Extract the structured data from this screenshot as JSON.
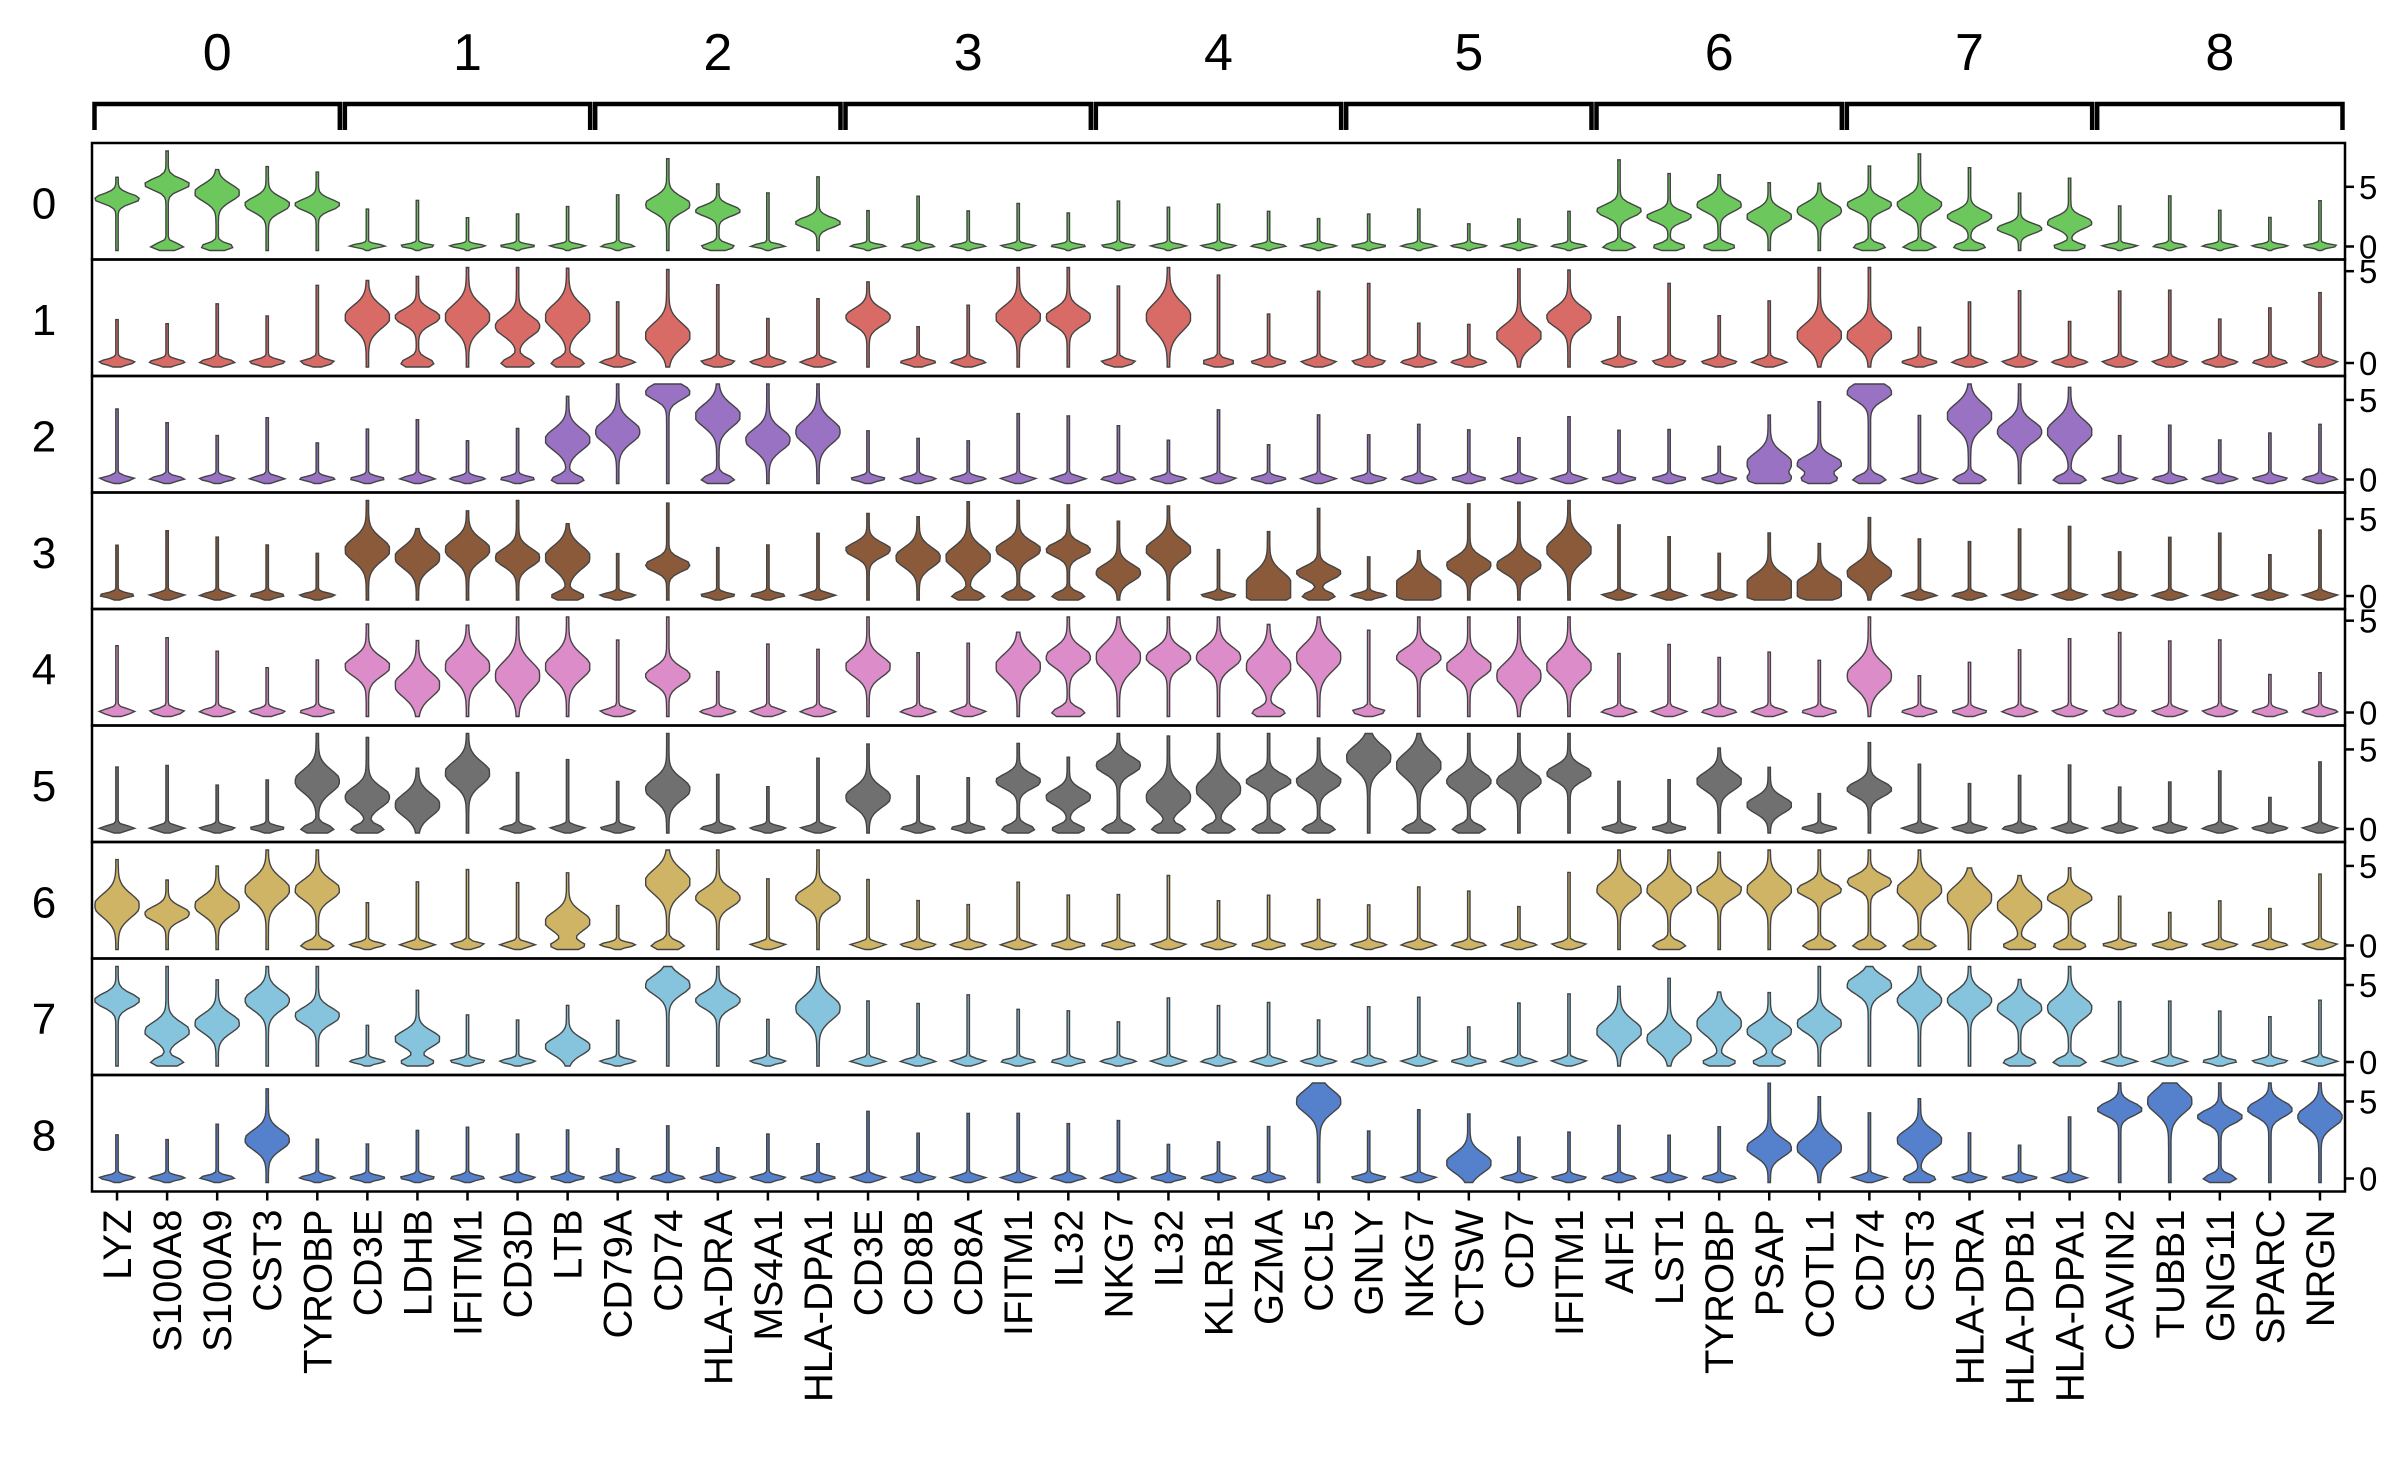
{
  "chart_data": {
    "type": "stacked_violin",
    "group_labels": [
      "0",
      "1",
      "2",
      "3",
      "4",
      "5",
      "6",
      "7",
      "8"
    ],
    "gene_groups": [
      {
        "label": "0",
        "genes": [
          "LYZ",
          "S100A8",
          "S100A9",
          "CST3",
          "TYROBP"
        ]
      },
      {
        "label": "1",
        "genes": [
          "CD3E",
          "LDHB",
          "IFITM1",
          "CD3D",
          "LTB"
        ]
      },
      {
        "label": "2",
        "genes": [
          "CD79A",
          "CD74",
          "HLA-DRA",
          "MS4A1",
          "HLA-DPA1"
        ]
      },
      {
        "label": "3",
        "genes": [
          "CD3E",
          "CD8B",
          "CD8A",
          "IFITM1",
          "IL32"
        ]
      },
      {
        "label": "4",
        "genes": [
          "NKG7",
          "IL32",
          "KLRB1",
          "GZMA",
          "CCL5"
        ]
      },
      {
        "label": "5",
        "genes": [
          "GNLY",
          "NKG7",
          "CTSW",
          "CD7",
          "IFITM1"
        ]
      },
      {
        "label": "6",
        "genes": [
          "AIF1",
          "LST1",
          "TYROBP",
          "PSAP",
          "COTL1"
        ]
      },
      {
        "label": "7",
        "genes": [
          "CD74",
          "CST3",
          "HLA-DRA",
          "HLA-DPB1",
          "HLA-DPA1"
        ]
      },
      {
        "label": "8",
        "genes": [
          "CAVIN2",
          "TUBB1",
          "GNG11",
          "SPARC",
          "NRGN"
        ]
      }
    ],
    "rows": [
      {
        "label": "0",
        "color": "#6cc85c",
        "ticks": [
          "5",
          "0"
        ],
        "y_max": 8
      },
      {
        "label": "1",
        "color": "#d96b66",
        "ticks": [
          "5",
          "0"
        ],
        "y_max": 5.2
      },
      {
        "label": "2",
        "color": "#9a72c4",
        "ticks": [
          "5",
          "0"
        ],
        "y_max": 6
      },
      {
        "label": "3",
        "color": "#8a5a3a",
        "ticks": [
          "5",
          "0"
        ],
        "y_max": 6.2
      },
      {
        "label": "4",
        "color": "#dc8cc8",
        "ticks": [
          "5",
          "0"
        ],
        "y_max": 5.2
      },
      {
        "label": "5",
        "color": "#707070",
        "ticks": [
          "5",
          "0"
        ],
        "y_max": 6
      },
      {
        "label": "6",
        "color": "#cfb465",
        "ticks": [
          "5",
          "0"
        ],
        "y_max": 6
      },
      {
        "label": "7",
        "color": "#86c3dc",
        "ticks": [
          "5",
          "0"
        ],
        "y_max": 6.2
      },
      {
        "label": "8",
        "color": "#5580cc",
        "ticks": [
          "5",
          "0"
        ],
        "y_max": 6.2
      }
    ],
    "median_expression": [
      [
        4.0,
        5.2,
        4.5,
        3.5,
        3.5,
        0.2,
        0.5,
        0.2,
        0.1,
        0.2,
        0.1,
        3.5,
        3.0,
        0.2,
        2.0,
        0.1,
        0.1,
        0.1,
        0.2,
        0.2,
        0.1,
        0.1,
        0.1,
        0.1,
        0.2,
        0.1,
        0.1,
        0.1,
        0.1,
        0.1,
        3.0,
        2.5,
        3.5,
        2.5,
        3.0,
        3.5,
        3.5,
        2.5,
        1.5,
        2.0,
        0.1,
        0.1,
        0.1,
        0.1,
        0.3
      ],
      [
        0.2,
        0.2,
        0.2,
        0.1,
        0.1,
        2.5,
        2.5,
        2.5,
        2.0,
        2.5,
        0.1,
        1.5,
        0.1,
        0.1,
        0.1,
        2.5,
        0.1,
        0.1,
        2.5,
        2.5,
        0.1,
        2.5,
        0.5,
        0.2,
        0.2,
        0.1,
        0.1,
        0.3,
        1.5,
        2.5,
        0.2,
        0.2,
        0.1,
        0.5,
        1.5,
        1.5,
        0.1,
        0.1,
        0.1,
        0.1,
        0.1,
        0.1,
        0.1,
        0.1,
        0.1
      ],
      [
        0.2,
        0.2,
        0.2,
        0.1,
        0.1,
        0.2,
        0.5,
        0.2,
        0.1,
        2.5,
        3.0,
        5.5,
        4.0,
        2.5,
        3.0,
        0.2,
        0.1,
        0.1,
        0.3,
        0.2,
        0.1,
        0.1,
        0.1,
        0.1,
        0.1,
        0.1,
        0.1,
        0.1,
        0.1,
        0.3,
        0.1,
        0.1,
        0.1,
        1.0,
        1.0,
        5.5,
        0.1,
        4.0,
        3.0,
        3.0,
        0.1,
        0.1,
        0.1,
        0.1,
        0.1
      ],
      [
        0.2,
        0.2,
        0.2,
        0.1,
        0.2,
        3.0,
        2.5,
        3.0,
        2.5,
        2.5,
        0.2,
        2.0,
        0.2,
        0.1,
        0.5,
        3.0,
        2.5,
        2.5,
        3.0,
        3.0,
        1.5,
        3.0,
        0.3,
        0.8,
        1.5,
        0.5,
        0.8,
        2.0,
        2.0,
        3.0,
        0.5,
        0.1,
        0.1,
        0.8,
        0.8,
        1.5,
        0.1,
        0.1,
        0.5,
        0.5,
        0.1,
        0.1,
        0.1,
        0.1,
        0.1
      ],
      [
        0.2,
        0.2,
        0.2,
        0.1,
        0.5,
        2.5,
        1.5,
        2.5,
        2.0,
        2.5,
        0.1,
        2.0,
        0.1,
        0.1,
        0.2,
        2.5,
        0.3,
        0.5,
        2.5,
        3.0,
        3.0,
        3.0,
        3.0,
        2.5,
        3.0,
        0.5,
        3.0,
        2.5,
        2.0,
        2.5,
        0.1,
        0.3,
        0.3,
        0.5,
        0.2,
        2.0,
        0.1,
        0.1,
        0.1,
        0.1,
        0.1,
        0.1,
        0.1,
        0.1,
        0.1
      ],
      [
        0.2,
        0.2,
        0.2,
        0.1,
        3.0,
        2.0,
        1.5,
        3.5,
        0.2,
        0.2,
        0.1,
        2.5,
        0.2,
        0.1,
        0.2,
        2.0,
        0.1,
        0.2,
        3.0,
        2.0,
        4.0,
        2.0,
        2.5,
        3.0,
        3.0,
        4.5,
        4.0,
        3.0,
        3.0,
        3.5,
        0.2,
        0.1,
        3.0,
        1.5,
        0.2,
        2.5,
        0.1,
        0.1,
        0.3,
        0.3,
        0.1,
        0.1,
        0.1,
        0.1,
        0.1
      ],
      [
        2.5,
        2.0,
        2.5,
        3.5,
        3.5,
        0.1,
        0.5,
        0.5,
        0.1,
        1.5,
        0.1,
        4.0,
        3.0,
        0.1,
        3.0,
        0.1,
        0.1,
        0.1,
        0.5,
        0.2,
        0.3,
        0.3,
        0.2,
        0.2,
        0.2,
        0.1,
        0.3,
        0.2,
        0.1,
        0.5,
        3.5,
        3.5,
        3.5,
        3.5,
        3.5,
        4.0,
        3.5,
        3.0,
        2.5,
        3.0,
        0.1,
        0.1,
        0.2,
        0.1,
        0.3
      ],
      [
        4.0,
        2.0,
        2.5,
        4.0,
        3.0,
        0.2,
        1.5,
        0.2,
        0.1,
        1.0,
        0.1,
        5.0,
        4.0,
        0.1,
        3.5,
        0.1,
        0.1,
        0.1,
        0.2,
        0.2,
        0.2,
        0.1,
        0.1,
        0.1,
        0.2,
        0.1,
        0.1,
        0.2,
        0.2,
        0.2,
        2.0,
        1.5,
        2.5,
        2.0,
        2.5,
        5.0,
        4.0,
        4.0,
        3.5,
        3.5,
        0.1,
        0.1,
        0.1,
        0.1,
        0.2
      ],
      [
        0.5,
        0.5,
        0.5,
        2.5,
        0.5,
        0.2,
        0.2,
        0.1,
        0.1,
        0.1,
        0.1,
        0.5,
        0.1,
        0.1,
        0.1,
        0.1,
        0.1,
        0.1,
        0.1,
        0.1,
        0.2,
        0.1,
        0.2,
        0.1,
        5.0,
        0.2,
        0.2,
        1.0,
        0.1,
        0.1,
        0.3,
        0.1,
        0.3,
        2.0,
        2.0,
        0.3,
        2.5,
        0.2,
        0.1,
        0.2,
        4.5,
        5.0,
        4.0,
        4.5,
        4.0
      ]
    ]
  }
}
